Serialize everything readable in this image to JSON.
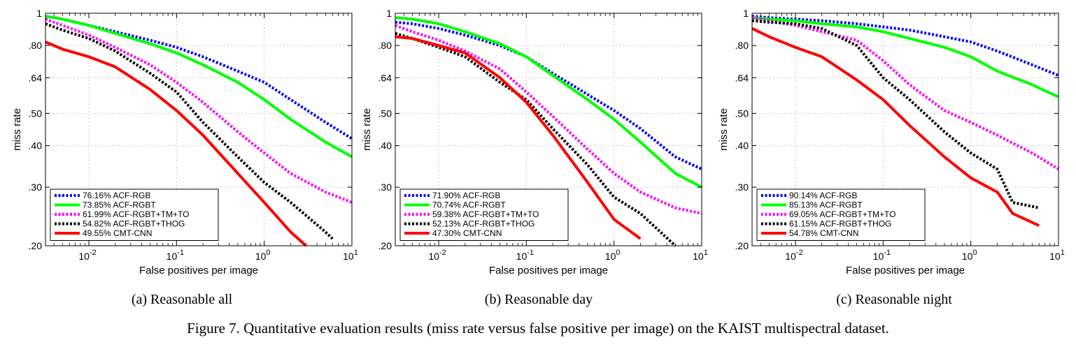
{
  "figure": {
    "caption": "Figure 7. Quantitative evaluation results (miss rate versus false positive per image) on the KAIST multispectral dataset."
  },
  "axes": {
    "xlabel": "False positives per image",
    "ylabel": "miss rate",
    "x_scale": "log",
    "y_scale": "log",
    "xlim": [
      0.0032,
      10
    ],
    "ylim": [
      0.2,
      1
    ],
    "x_ticks": [
      {
        "value": 0.01,
        "base": "10",
        "exp": "-2"
      },
      {
        "value": 0.1,
        "base": "10",
        "exp": "-1"
      },
      {
        "value": 1,
        "base": "10",
        "exp": "0"
      },
      {
        "value": 10,
        "base": "10",
        "exp": "1"
      }
    ],
    "y_ticks": [
      {
        "value": 0.2,
        "label": ".20"
      },
      {
        "value": 0.3,
        "label": ".30"
      },
      {
        "value": 0.4,
        "label": ".40"
      },
      {
        "value": 0.5,
        "label": ".50"
      },
      {
        "value": 0.64,
        "label": ".64"
      },
      {
        "value": 0.8,
        "label": ".80"
      },
      {
        "value": 1.0,
        "label": "1"
      }
    ],
    "grid": true,
    "legend_position": "bottom-left"
  },
  "series_styles": [
    {
      "method": "ACF-RGB",
      "color": "#0000ff",
      "dash": "dotted"
    },
    {
      "method": "ACF-RGBT",
      "color": "#00ff00",
      "dash": "solid"
    },
    {
      "method": "ACF-RGBT+TM+TO",
      "color": "#ff00ff",
      "dash": "dotted"
    },
    {
      "method": "ACF-RGBT+THOG",
      "color": "#000000",
      "dash": "dotted"
    },
    {
      "method": "CMT-CNN",
      "color": "#ff0000",
      "dash": "solid"
    }
  ],
  "chart_data": [
    {
      "type": "line",
      "subcaption": "(a)  Reasonable all",
      "xlabel": "False positives per image",
      "ylabel": "miss rate",
      "series": [
        {
          "name": "76.16% ACF-RGB",
          "x": [
            0.0032,
            0.005,
            0.01,
            0.02,
            0.05,
            0.1,
            0.2,
            0.5,
            1,
            2,
            5,
            10
          ],
          "y": [
            0.98,
            0.96,
            0.92,
            0.88,
            0.83,
            0.79,
            0.74,
            0.67,
            0.62,
            0.55,
            0.47,
            0.42
          ]
        },
        {
          "name": "73.85% ACF-RGBT",
          "x": [
            0.0032,
            0.005,
            0.01,
            0.02,
            0.05,
            0.1,
            0.2,
            0.5,
            1,
            2,
            5,
            10
          ],
          "y": [
            0.98,
            0.96,
            0.92,
            0.87,
            0.81,
            0.76,
            0.7,
            0.62,
            0.55,
            0.48,
            0.41,
            0.37
          ]
        },
        {
          "name": "61.99% ACF-RGBT+TM+TO",
          "x": [
            0.0032,
            0.005,
            0.01,
            0.02,
            0.05,
            0.1,
            0.2,
            0.5,
            1,
            2,
            5,
            10
          ],
          "y": [
            0.96,
            0.92,
            0.86,
            0.79,
            0.7,
            0.62,
            0.54,
            0.44,
            0.38,
            0.33,
            0.29,
            0.27
          ]
        },
        {
          "name": "54.82% ACF-RGBT+THOG",
          "x": [
            0.0032,
            0.005,
            0.01,
            0.02,
            0.05,
            0.1,
            0.2,
            0.5,
            1,
            2,
            5,
            6
          ],
          "y": [
            0.93,
            0.89,
            0.84,
            0.77,
            0.66,
            0.58,
            0.47,
            0.37,
            0.31,
            0.27,
            0.22,
            0.21
          ]
        },
        {
          "name": "49.55% CMT-CNN",
          "x": [
            0.0032,
            0.005,
            0.01,
            0.02,
            0.05,
            0.1,
            0.2,
            0.5,
            1,
            2,
            3
          ],
          "y": [
            0.82,
            0.78,
            0.74,
            0.69,
            0.59,
            0.51,
            0.43,
            0.33,
            0.27,
            0.22,
            0.2
          ]
        }
      ]
    },
    {
      "type": "line",
      "subcaption": "(b)  Reasonable day",
      "xlabel": "False positives per image",
      "ylabel": "miss rate",
      "series": [
        {
          "name": "71.90% ACF-RGB",
          "x": [
            0.0032,
            0.005,
            0.01,
            0.02,
            0.05,
            0.1,
            0.2,
            0.5,
            1,
            2,
            5,
            10
          ],
          "y": [
            0.94,
            0.93,
            0.9,
            0.86,
            0.8,
            0.74,
            0.66,
            0.57,
            0.51,
            0.45,
            0.37,
            0.34
          ]
        },
        {
          "name": "70.74% ACF-RGBT",
          "x": [
            0.0032,
            0.005,
            0.01,
            0.02,
            0.05,
            0.1,
            0.2,
            0.5,
            1,
            2,
            5,
            10
          ],
          "y": [
            0.97,
            0.96,
            0.93,
            0.88,
            0.81,
            0.74,
            0.65,
            0.55,
            0.48,
            0.41,
            0.33,
            0.3
          ]
        },
        {
          "name": "59.38% ACF-RGBT+TM+TO",
          "x": [
            0.0032,
            0.005,
            0.01,
            0.02,
            0.05,
            0.1,
            0.2,
            0.5,
            1,
            2,
            5,
            10
          ],
          "y": [
            0.92,
            0.88,
            0.83,
            0.77,
            0.68,
            0.58,
            0.49,
            0.39,
            0.33,
            0.29,
            0.26,
            0.25
          ]
        },
        {
          "name": "52.13% ACF-RGBT+THOG",
          "x": [
            0.0032,
            0.005,
            0.01,
            0.02,
            0.05,
            0.1,
            0.2,
            0.5,
            1,
            2,
            5
          ],
          "y": [
            0.87,
            0.84,
            0.79,
            0.74,
            0.62,
            0.55,
            0.45,
            0.35,
            0.28,
            0.25,
            0.2
          ]
        },
        {
          "name": "47.30% CMT-CNN",
          "x": [
            0.0032,
            0.005,
            0.01,
            0.02,
            0.05,
            0.1,
            0.2,
            0.5,
            1,
            2
          ],
          "y": [
            0.85,
            0.84,
            0.8,
            0.76,
            0.64,
            0.54,
            0.43,
            0.31,
            0.24,
            0.21
          ]
        }
      ]
    },
    {
      "type": "line",
      "subcaption": "(c)  Reasonable night",
      "xlabel": "False positives per image",
      "ylabel": "miss rate",
      "series": [
        {
          "name": "90.14% ACF-RGB",
          "x": [
            0.0032,
            0.005,
            0.01,
            0.02,
            0.05,
            0.1,
            0.2,
            0.5,
            1,
            2,
            5,
            10
          ],
          "y": [
            0.98,
            0.97,
            0.96,
            0.95,
            0.93,
            0.91,
            0.89,
            0.85,
            0.82,
            0.77,
            0.7,
            0.65
          ]
        },
        {
          "name": "85.13% ACF-RGBT",
          "x": [
            0.0032,
            0.005,
            0.01,
            0.02,
            0.05,
            0.1,
            0.2,
            0.5,
            1,
            2,
            5,
            10
          ],
          "y": [
            0.97,
            0.96,
            0.95,
            0.93,
            0.91,
            0.88,
            0.84,
            0.79,
            0.74,
            0.67,
            0.61,
            0.56
          ]
        },
        {
          "name": "69.05% ACF-RGBT+TM+TO",
          "x": [
            0.0032,
            0.005,
            0.01,
            0.02,
            0.05,
            0.1,
            0.2,
            0.5,
            1,
            2,
            5,
            10
          ],
          "y": [
            0.97,
            0.95,
            0.92,
            0.88,
            0.83,
            0.72,
            0.61,
            0.51,
            0.47,
            0.43,
            0.38,
            0.34
          ]
        },
        {
          "name": "61.15% ACF-RGBT+THOG",
          "x": [
            0.0032,
            0.005,
            0.01,
            0.02,
            0.05,
            0.1,
            0.2,
            0.5,
            1,
            2,
            3,
            6
          ],
          "y": [
            0.95,
            0.94,
            0.93,
            0.9,
            0.8,
            0.64,
            0.55,
            0.44,
            0.38,
            0.34,
            0.27,
            0.26
          ]
        },
        {
          "name": "54.78% CMT-CNN",
          "x": [
            0.0032,
            0.005,
            0.01,
            0.02,
            0.05,
            0.1,
            0.2,
            0.5,
            1,
            2,
            3,
            6
          ],
          "y": [
            0.9,
            0.85,
            0.79,
            0.74,
            0.63,
            0.55,
            0.46,
            0.37,
            0.32,
            0.29,
            0.25,
            0.23
          ]
        }
      ]
    }
  ]
}
